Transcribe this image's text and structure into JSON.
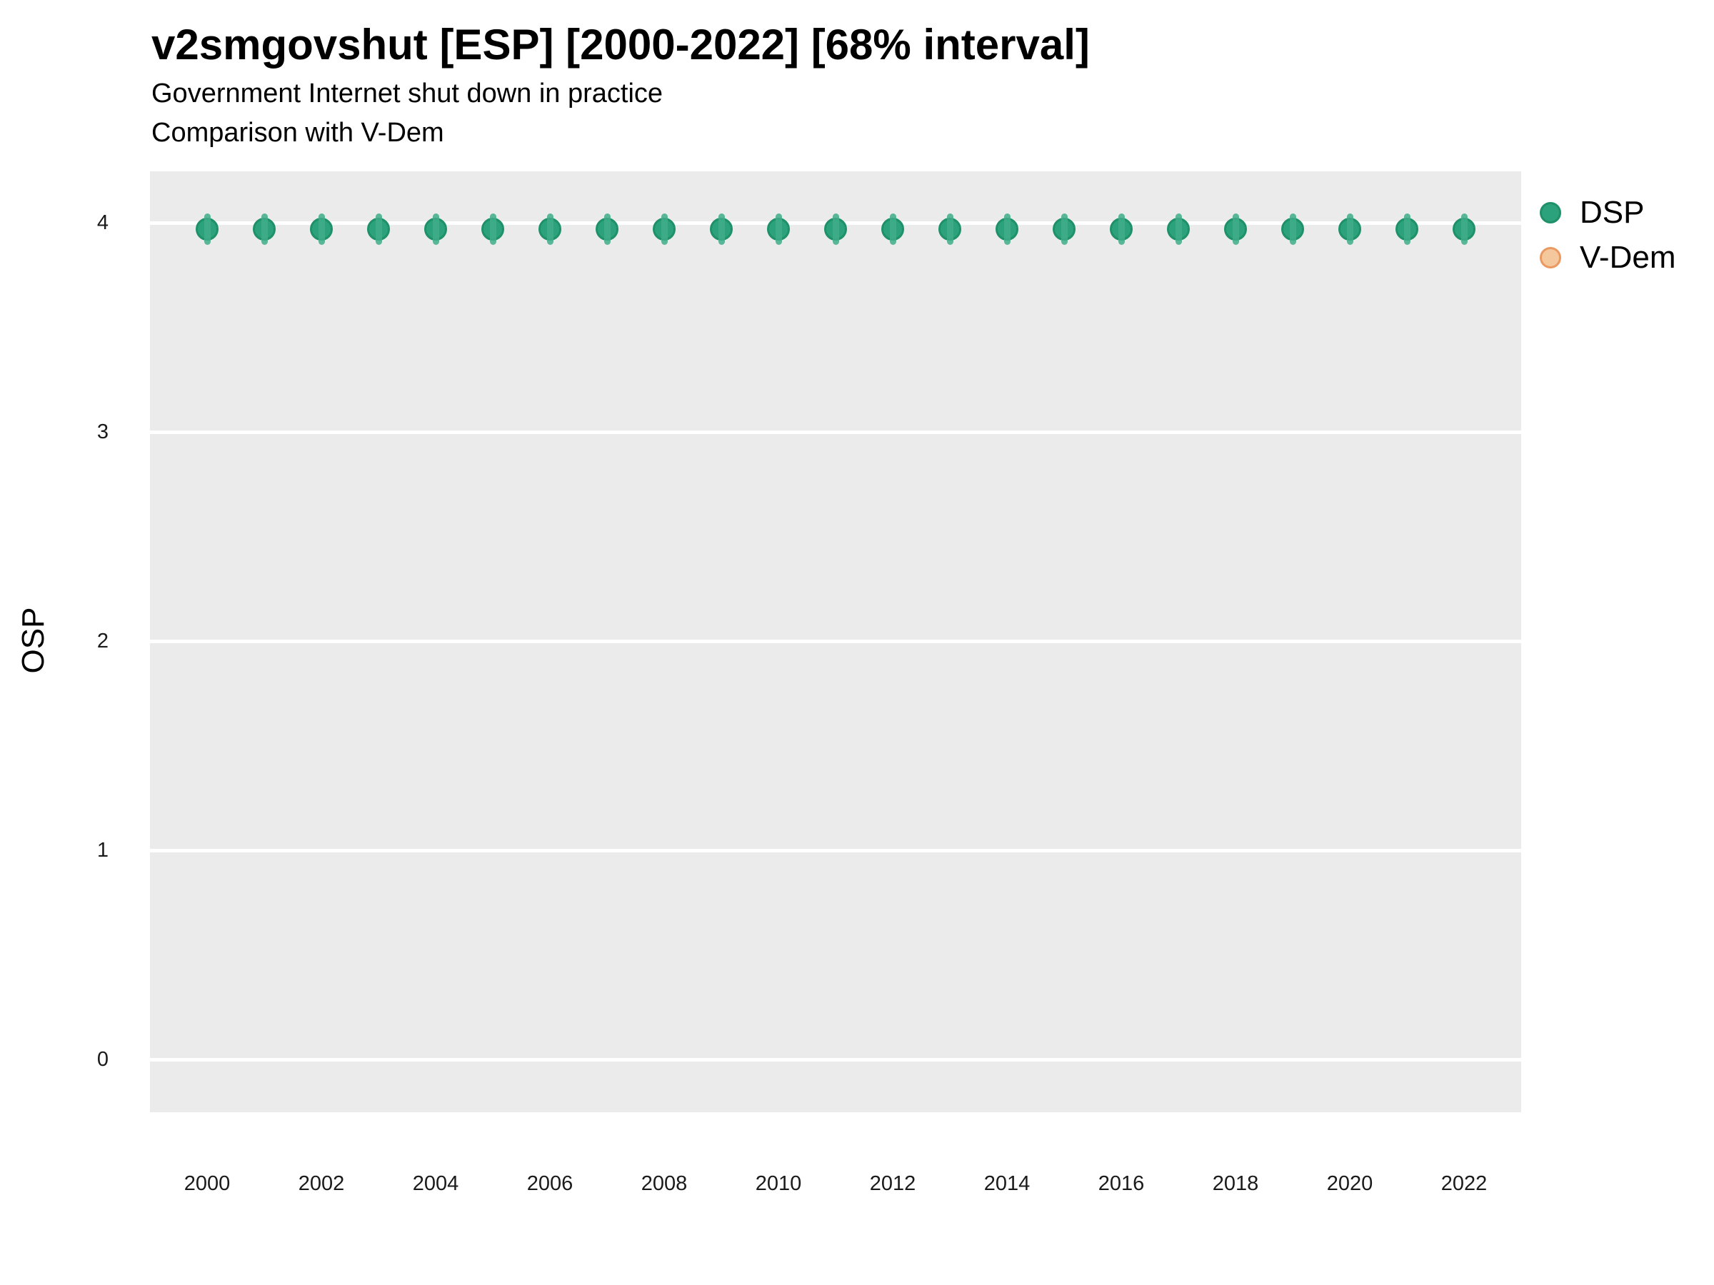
{
  "header": {
    "title": "v2smgovshut [ESP] [2000-2022] [68% interval]",
    "subtitle_line1": "Government Internet shut down in practice",
    "subtitle_line2": "Comparison with V-Dem"
  },
  "axes": {
    "y_title": "OSP",
    "y_ticks": [
      0,
      1,
      2,
      3,
      4
    ],
    "x_ticks": [
      2000,
      2002,
      2004,
      2006,
      2008,
      2010,
      2012,
      2014,
      2016,
      2018,
      2020,
      2022
    ]
  },
  "legend": {
    "items": [
      {
        "label": "DSP",
        "fill": "#2ba17c",
        "stroke": "#1f9068"
      },
      {
        "label": "V-Dem",
        "fill": "#f5c79d",
        "stroke": "#ea9a61"
      }
    ]
  },
  "colors": {
    "panel_background": "#ebebeb",
    "gridline": "#ffffff",
    "dsp_fill": "#2ba17c",
    "dsp_stroke": "#1f9068",
    "dsp_interval": "#41ad89",
    "vdem_fill": "#f5c79d",
    "vdem_stroke": "#ea9a61"
  },
  "chart_data": {
    "type": "scatter",
    "title": "v2smgovshut [ESP] [2000-2022] [68% interval]",
    "subtitle": [
      "Government Internet shut down in practice",
      "Comparison with V-Dem"
    ],
    "xlabel": "",
    "ylabel": "OSP",
    "x": [
      2000,
      2001,
      2002,
      2003,
      2004,
      2005,
      2006,
      2007,
      2008,
      2009,
      2010,
      2011,
      2012,
      2013,
      2014,
      2015,
      2016,
      2017,
      2018,
      2019,
      2020,
      2021,
      2022
    ],
    "series": [
      {
        "name": "DSP",
        "fill": "#2ba17c",
        "stroke": "#1f9068",
        "interval_color": "#41ad89",
        "values": [
          3.97,
          3.97,
          3.97,
          3.97,
          3.97,
          3.97,
          3.97,
          3.97,
          3.97,
          3.97,
          3.97,
          3.97,
          3.97,
          3.97,
          3.97,
          3.97,
          3.97,
          3.97,
          3.97,
          3.97,
          3.97,
          3.97,
          3.97
        ],
        "interval_half_width": 0.07
      },
      {
        "name": "V-Dem",
        "fill": "#f5c79d",
        "stroke": "#ea9a61",
        "values": []
      }
    ],
    "xticks": [
      2000,
      2002,
      2004,
      2006,
      2008,
      2010,
      2012,
      2014,
      2016,
      2018,
      2020,
      2022
    ],
    "yticks": [
      0,
      1,
      2,
      3,
      4
    ],
    "xlim": [
      1999,
      2023
    ],
    "ylim": [
      -0.25,
      4.25
    ],
    "grid": "horizontal-major-only, white on gray panel",
    "legend_position": "right"
  }
}
